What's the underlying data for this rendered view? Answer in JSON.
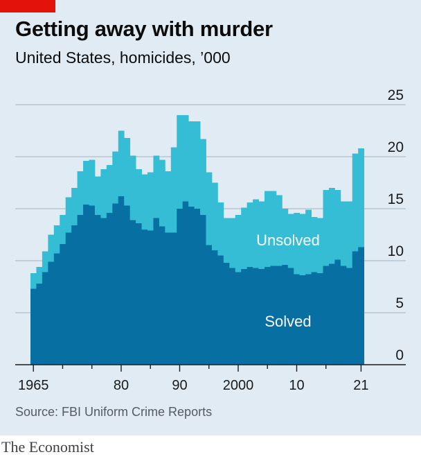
{
  "header": {
    "title": "Getting away with murder",
    "subtitle": "United States, homicides, ’000"
  },
  "footer": {
    "source": "Source: FBI Uniform Crime Reports",
    "brand": "The Economist"
  },
  "colors": {
    "background": "#e0ebf3",
    "solved": "#076fa2",
    "unsolved": "#34bdd5",
    "grid": "#b7c6cf",
    "axis": "#1a1a1a",
    "accent": "#e3120b"
  },
  "chart_data": {
    "type": "bar",
    "stacked": true,
    "title": "Getting away with murder",
    "subtitle": "United States, homicides, ’000",
    "xlabel": "",
    "ylabel": "",
    "ylim": [
      0,
      25
    ],
    "y_ticks": [
      0,
      5,
      10,
      15,
      20,
      25
    ],
    "y_axis_position": "right",
    "grid": true,
    "x_start": 1965,
    "x_tick_labels": [
      {
        "x": 1965,
        "label": "1965"
      },
      {
        "x": 1980,
        "label": "80"
      },
      {
        "x": 1990,
        "label": "90"
      },
      {
        "x": 2000,
        "label": "2000"
      },
      {
        "x": 2010,
        "label": "10"
      },
      {
        "x": 2021,
        "label": "21"
      }
    ],
    "x_minor_ticks": [
      1970,
      1975,
      1985,
      1995,
      2005,
      2015
    ],
    "categories": [
      1965,
      1966,
      1967,
      1968,
      1969,
      1970,
      1971,
      1972,
      1973,
      1974,
      1975,
      1976,
      1977,
      1978,
      1979,
      1980,
      1981,
      1982,
      1983,
      1984,
      1985,
      1986,
      1987,
      1988,
      1989,
      1990,
      1991,
      1992,
      1993,
      1994,
      1995,
      1996,
      1997,
      1998,
      1999,
      2000,
      2001,
      2002,
      2003,
      2004,
      2005,
      2006,
      2007,
      2008,
      2009,
      2010,
      2011,
      2012,
      2013,
      2014,
      2015,
      2016,
      2017,
      2018,
      2019,
      2020,
      2021
    ],
    "series": [
      {
        "name": "Solved",
        "values": [
          7.3,
          7.8,
          8.9,
          9.9,
          10.7,
          11.6,
          12.7,
          13.4,
          14.4,
          15.4,
          15.3,
          14.4,
          14.1,
          14.6,
          15.5,
          16.2,
          15.3,
          13.9,
          13.6,
          13.0,
          12.9,
          14.1,
          13.3,
          12.7,
          12.7,
          15.0,
          15.7,
          15.2,
          15.0,
          14.4,
          11.5,
          11.0,
          10.5,
          9.8,
          9.3,
          8.9,
          9.2,
          9.4,
          9.3,
          9.2,
          9.4,
          9.5,
          9.5,
          9.6,
          9.3,
          8.7,
          8.6,
          8.7,
          8.9,
          8.8,
          9.5,
          9.7,
          10.1,
          9.5,
          9.3,
          10.9,
          11.3
        ]
      },
      {
        "name": "Unsolved",
        "values": [
          1.5,
          1.6,
          2.0,
          2.6,
          2.7,
          2.8,
          3.4,
          3.6,
          4.2,
          4.2,
          4.4,
          3.7,
          4.7,
          4.6,
          5.0,
          6.3,
          6.5,
          6.2,
          5.2,
          5.3,
          5.6,
          6.0,
          6.4,
          5.9,
          8.2,
          9.0,
          8.3,
          8.2,
          8.4,
          7.3,
          7.0,
          6.5,
          5.1,
          4.3,
          4.8,
          5.5,
          5.9,
          6.2,
          6.6,
          6.5,
          7.3,
          7.2,
          6.8,
          5.4,
          5.2,
          5.9,
          5.9,
          6.2,
          5.3,
          5.3,
          7.3,
          7.3,
          6.7,
          6.2,
          6.4,
          9.4,
          9.5
        ]
      }
    ],
    "annotations": [
      {
        "text": "Unsolved",
        "series": "Unsolved"
      },
      {
        "text": "Solved",
        "series": "Solved"
      }
    ]
  }
}
